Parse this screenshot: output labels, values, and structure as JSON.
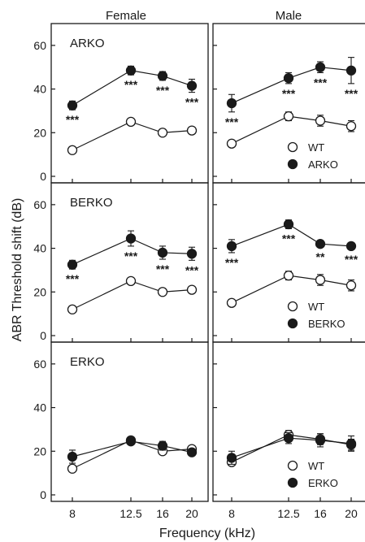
{
  "figure": {
    "column_titles": [
      "Female",
      "Male"
    ],
    "ylabel": "ABR Threshold shift (dB)",
    "xlabel": "Frequency (kHz)",
    "x_tick_labels": [
      "8",
      "12.5",
      "16",
      "20"
    ],
    "y_tick_labels": [
      "0",
      "20",
      "40",
      "60"
    ]
  },
  "colors": {
    "ko": "#1a1a1a",
    "wt_fill": "#ffffff",
    "axis": "#1a1a1a"
  },
  "chart_data": [
    {
      "type": "line",
      "row": 0,
      "col": 0,
      "panel_label": "ARKO",
      "x": [
        8,
        12.5,
        16,
        20
      ],
      "ylim": [
        0,
        70
      ],
      "series": [
        {
          "key": "wt",
          "values": [
            12,
            25,
            20,
            21
          ],
          "errors": [
            1,
            1.5,
            1.5,
            1.5
          ]
        },
        {
          "key": "ko",
          "values": [
            32.5,
            48.5,
            46,
            41.5
          ],
          "errors": [
            2,
            2,
            2,
            3
          ],
          "significance": [
            "***",
            "***",
            "***",
            "***"
          ]
        }
      ],
      "legend": null
    },
    {
      "type": "line",
      "row": 0,
      "col": 1,
      "panel_label": "",
      "x": [
        8,
        12.5,
        16,
        20
      ],
      "ylim": [
        0,
        70
      ],
      "series": [
        {
          "key": "wt",
          "values": [
            15,
            27.5,
            25.5,
            23
          ],
          "errors": [
            1,
            2,
            2.5,
            2.5
          ]
        },
        {
          "key": "ko",
          "values": [
            33.5,
            45,
            50,
            48.5
          ],
          "errors": [
            4,
            2.5,
            2.5,
            6
          ],
          "significance": [
            "***",
            "***",
            "***",
            "***"
          ]
        }
      ],
      "legend": {
        "labels": [
          "WT",
          "ARKO"
        ],
        "position": "bottom-right"
      }
    },
    {
      "type": "line",
      "row": 1,
      "col": 0,
      "panel_label": "BERKO",
      "x": [
        8,
        12.5,
        16,
        20
      ],
      "ylim": [
        0,
        70
      ],
      "series": [
        {
          "key": "wt",
          "values": [
            12,
            25,
            20,
            21
          ],
          "errors": [
            1,
            1.5,
            1.5,
            1.5
          ]
        },
        {
          "key": "ko",
          "values": [
            32.5,
            44.5,
            38,
            37.5
          ],
          "errors": [
            2,
            3.5,
            3,
            3
          ],
          "significance": [
            "***",
            "***",
            "***",
            "***"
          ]
        }
      ],
      "legend": null
    },
    {
      "type": "line",
      "row": 1,
      "col": 1,
      "panel_label": "",
      "x": [
        8,
        12.5,
        16,
        20
      ],
      "ylim": [
        0,
        70
      ],
      "series": [
        {
          "key": "wt",
          "values": [
            15,
            27.5,
            25.5,
            23
          ],
          "errors": [
            1,
            2,
            2.5,
            2.5
          ]
        },
        {
          "key": "ko",
          "values": [
            41,
            51,
            42,
            41
          ],
          "errors": [
            3,
            2,
            1.5,
            1.5
          ],
          "significance": [
            "***",
            "***",
            "**",
            "***"
          ]
        }
      ],
      "legend": {
        "labels": [
          "WT",
          "BERKO"
        ],
        "position": "bottom-right"
      }
    },
    {
      "type": "line",
      "row": 2,
      "col": 0,
      "panel_label": "ERKO",
      "x": [
        8,
        12.5,
        16,
        20
      ],
      "ylim": [
        0,
        70
      ],
      "series": [
        {
          "key": "wt",
          "values": [
            12,
            25,
            20,
            21
          ],
          "errors": [
            1,
            1.5,
            1.5,
            1.5
          ]
        },
        {
          "key": "ko",
          "values": [
            17.5,
            24.5,
            22.5,
            19.5
          ],
          "errors": [
            3,
            1.5,
            2,
            1.5
          ],
          "significance": [
            "",
            "",
            "",
            ""
          ]
        }
      ],
      "legend": null
    },
    {
      "type": "line",
      "row": 2,
      "col": 1,
      "panel_label": "",
      "x": [
        8,
        12.5,
        16,
        20
      ],
      "ylim": [
        0,
        70
      ],
      "series": [
        {
          "key": "wt",
          "values": [
            15,
            27.5,
            25.5,
            23
          ],
          "errors": [
            1,
            2,
            2.5,
            2.5
          ]
        },
        {
          "key": "ko",
          "values": [
            17,
            26,
            25,
            23.5
          ],
          "errors": [
            3,
            2.5,
            3,
            3.5
          ],
          "significance": [
            "",
            "",
            "",
            ""
          ]
        }
      ],
      "legend": {
        "labels": [
          "WT",
          "ERKO"
        ],
        "position": "bottom-right"
      }
    }
  ]
}
